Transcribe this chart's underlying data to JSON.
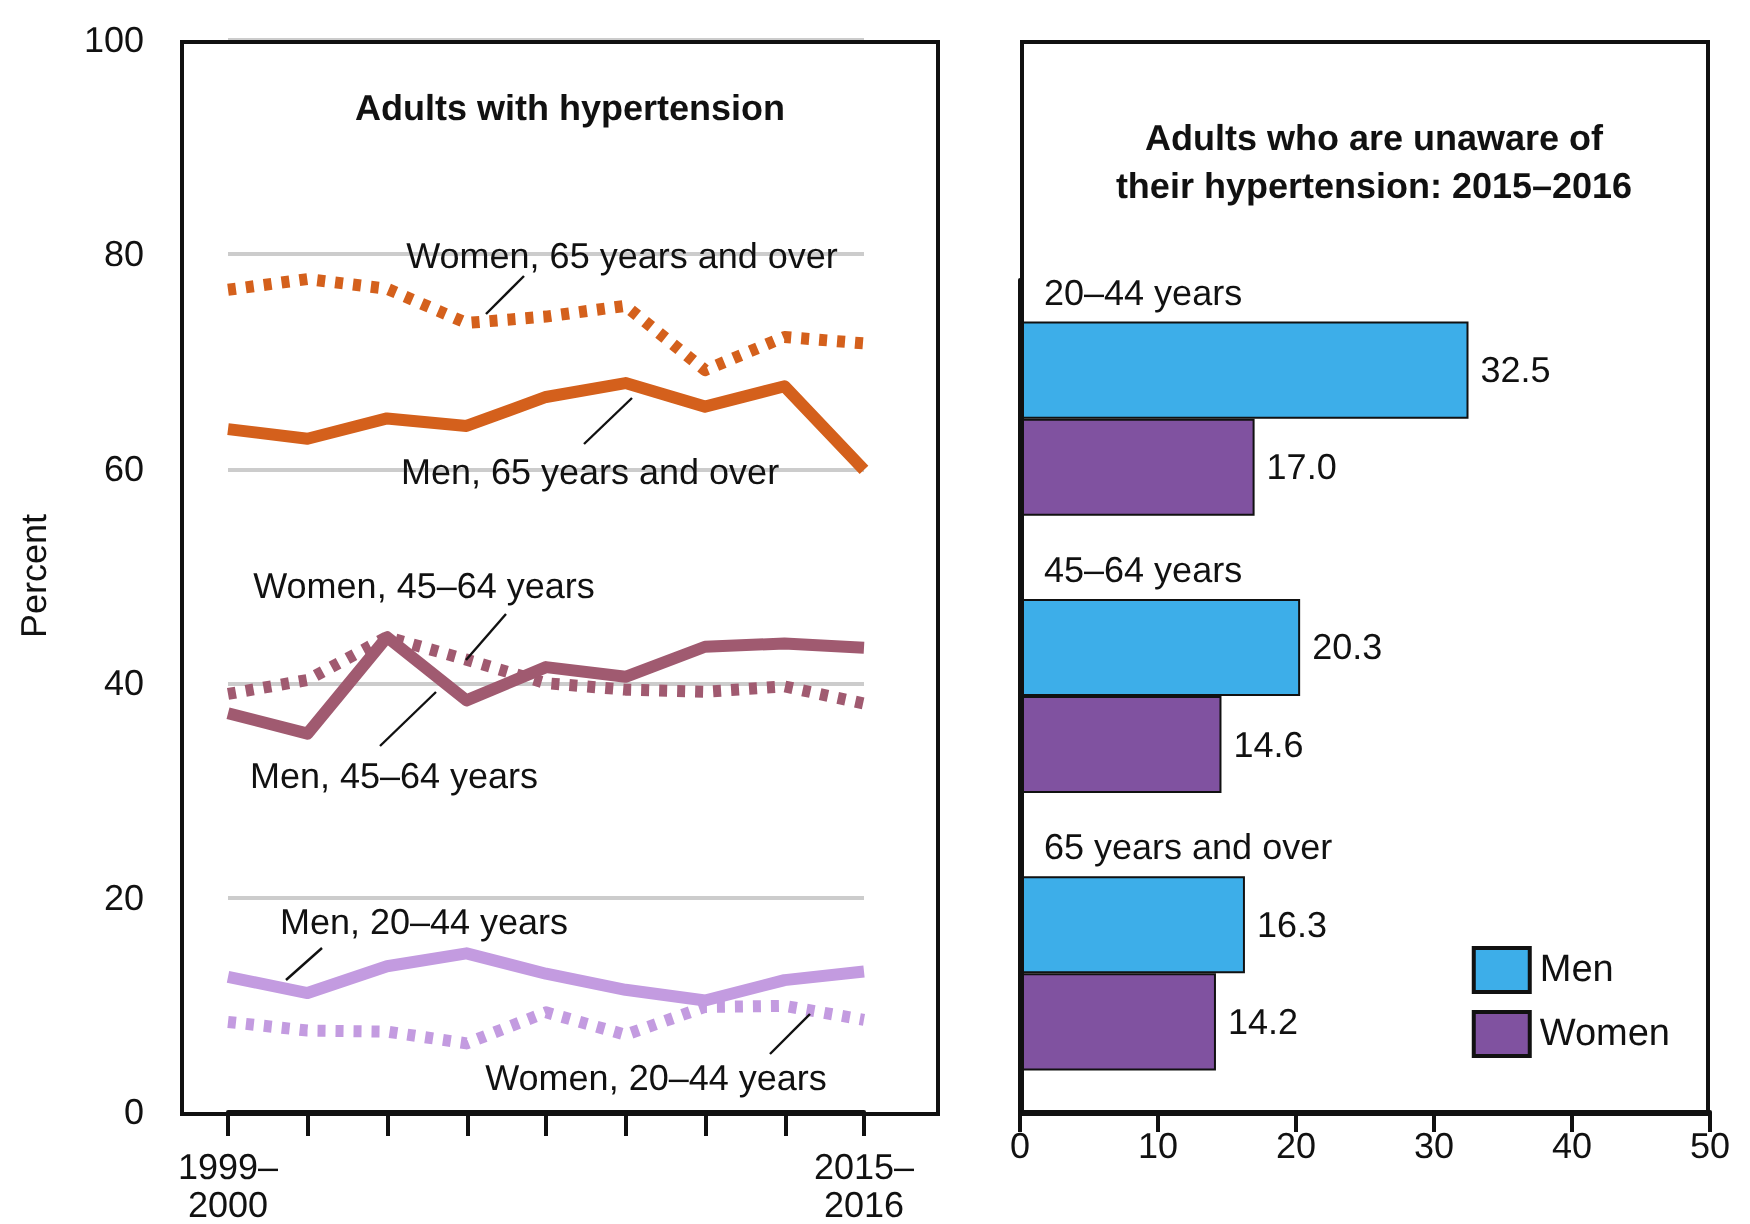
{
  "chart_data": [
    {
      "type": "line",
      "title": "Adults with hypertension",
      "ylabel": "Percent",
      "categories": [
        "1999–\n2000",
        null,
        null,
        null,
        null,
        null,
        null,
        null,
        "2015–\n2016"
      ],
      "series": [
        {
          "name": "Women, 65 years and over",
          "color": "#d4601c",
          "line_style": "dotted",
          "values": [
            76.7,
            77.7,
            76.8,
            73.6,
            74.2,
            75.2,
            69.2,
            72.3,
            71.7
          ]
        },
        {
          "name": "Men, 65 years and over",
          "color": "#d4601c",
          "line_style": "solid",
          "values": [
            63.7,
            62.8,
            64.7,
            64.0,
            66.7,
            68.0,
            65.8,
            67.7,
            59.9
          ]
        },
        {
          "name": "Women, 45–64 years",
          "color": "#a05a70",
          "line_style": "dotted",
          "values": [
            39.0,
            40.3,
            44.3,
            42.2,
            40.0,
            39.4,
            39.2,
            39.7,
            38.1
          ]
        },
        {
          "name": "Men, 45–64 years",
          "color": "#a05a70",
          "line_style": "solid",
          "values": [
            37.2,
            35.3,
            44.3,
            38.4,
            41.5,
            40.6,
            43.4,
            43.7,
            43.3
          ]
        },
        {
          "name": "Men, 20–44 years",
          "color": "#c39be0",
          "line_style": "solid",
          "values": [
            12.6,
            11.1,
            13.6,
            14.8,
            12.9,
            11.4,
            10.4,
            12.3,
            13.1
          ]
        },
        {
          "name": "Women, 20–44 years",
          "color": "#c39be0",
          "line_style": "dotted",
          "values": [
            8.4,
            7.6,
            7.5,
            6.4,
            9.3,
            7.2,
            9.8,
            9.9,
            8.6
          ]
        }
      ],
      "ylim": [
        0,
        100
      ],
      "yticks": [
        0,
        20,
        40,
        60,
        80,
        100
      ],
      "grid": "y",
      "marker": "none"
    },
    {
      "type": "bar",
      "orientation": "horizontal",
      "title": "Adults who are unaware of\ntheir hypertension: 2015–2016",
      "categories": [
        "20–44 years",
        "45–64 years",
        "65 years and over"
      ],
      "series": [
        {
          "name": "Men",
          "color": "#3daee9",
          "values": [
            32.5,
            20.3,
            16.3
          ],
          "value_labels": [
            "32.5",
            "20.3",
            "16.3"
          ]
        },
        {
          "name": "Women",
          "color": "#8052a0",
          "values": [
            17.0,
            14.6,
            14.2
          ],
          "value_labels": [
            "17.0",
            "14.6",
            "14.2"
          ]
        }
      ],
      "xlim": [
        0,
        50
      ],
      "xticks": [
        0,
        10,
        20,
        30,
        40,
        50
      ],
      "legend": "bottom right"
    }
  ]
}
